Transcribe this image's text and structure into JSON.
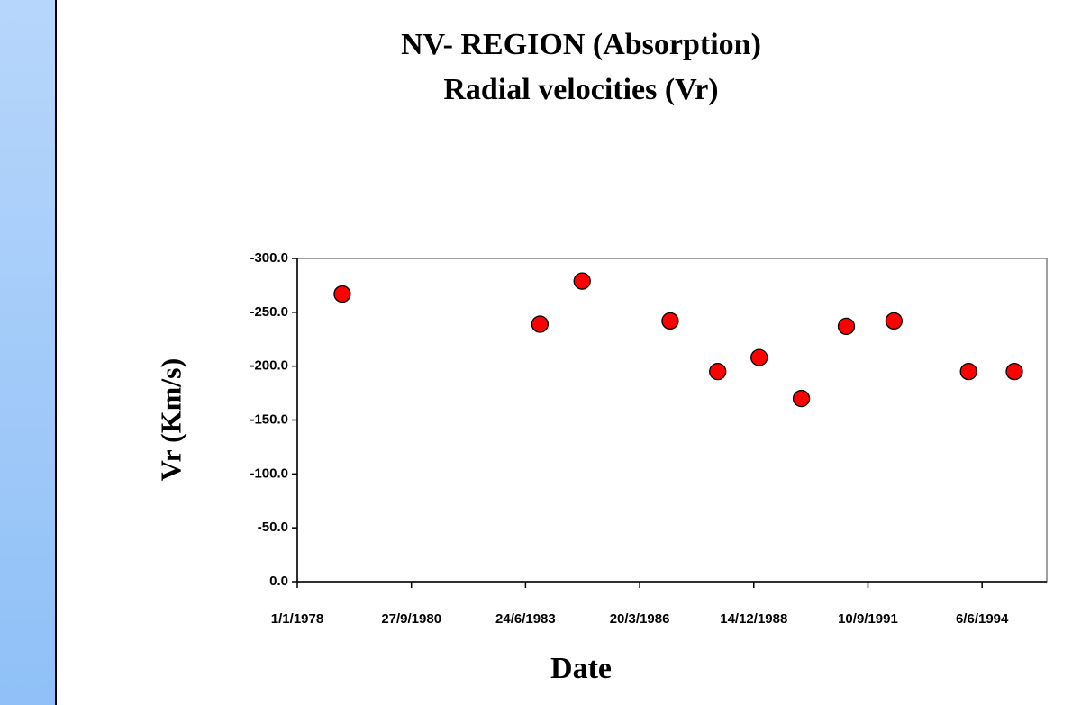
{
  "chart_data": {
    "type": "scatter",
    "title": "NV- REGION (Absorption)",
    "subtitle": "Radial velocities (Vr)",
    "xlabel": "Date",
    "ylabel": "Vr (Km/s)",
    "series": [
      {
        "name": null,
        "color": "#ff0000",
        "x": [
          "1979-01-30",
          "1983-10-28",
          "1984-11-01",
          "1986-12-12",
          "1988-02-02",
          "1989-01-30",
          "1990-02-04",
          "1991-03-05",
          "1992-04-25",
          "1994-02-08",
          "1995-03-16"
        ],
        "values": [
          -267,
          -239,
          -279,
          -242,
          -195,
          -208,
          -170,
          -237,
          -242,
          -195,
          -195
        ]
      }
    ],
    "xlim": [
      "1978-01-01",
      "1995-12-25"
    ],
    "xticks": [
      {
        "value": "1978-01-01",
        "label": "1/1/1978"
      },
      {
        "value": "1980-09-27",
        "label": "27/9/1980"
      },
      {
        "value": "1983-06-24",
        "label": "24/6/1983"
      },
      {
        "value": "1986-03-20",
        "label": "20/3/1986"
      },
      {
        "value": "1988-12-14",
        "label": "14/12/1988"
      },
      {
        "value": "1991-09-10",
        "label": "10/9/1991"
      },
      {
        "value": "1994-06-06",
        "label": "6/6/1994"
      }
    ],
    "ylim": [
      0,
      -300
    ],
    "yticks": [
      {
        "value": -300,
        "label": "-300.0"
      },
      {
        "value": -250,
        "label": "-250.0"
      },
      {
        "value": -200,
        "label": "-200.0"
      },
      {
        "value": -150,
        "label": "-150.0"
      },
      {
        "value": -100,
        "label": "-100.0"
      },
      {
        "value": -50,
        "label": "-50.0"
      },
      {
        "value": 0,
        "label": "0.0"
      }
    ],
    "grid": false
  }
}
